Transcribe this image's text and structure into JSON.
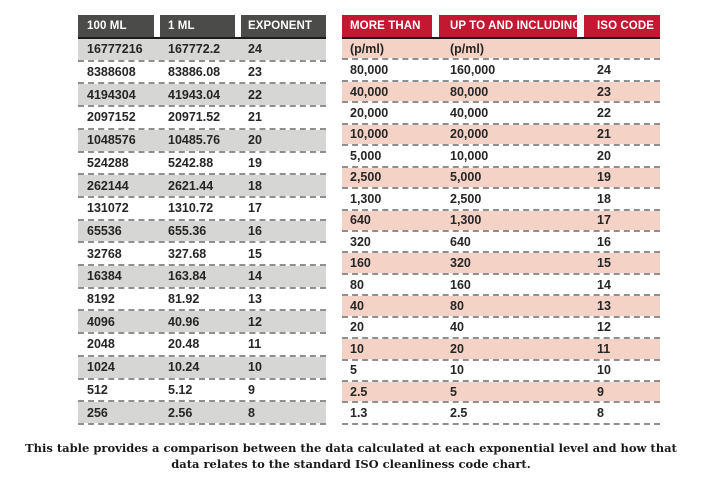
{
  "left_table": {
    "headers": [
      "100 ML",
      "1 ML",
      "EXPONENT"
    ],
    "rows": [
      [
        "16777216",
        "167772.2",
        "24"
      ],
      [
        "8388608",
        "83886.08",
        "23"
      ],
      [
        "4194304",
        "41943.04",
        "22"
      ],
      [
        "2097152",
        "20971.52",
        "21"
      ],
      [
        "1048576",
        "10485.76",
        "20"
      ],
      [
        "524288",
        "5242.88",
        "19"
      ],
      [
        "262144",
        "2621.44",
        "18"
      ],
      [
        "131072",
        "1310.72",
        "17"
      ],
      [
        "65536",
        "655.36",
        "16"
      ],
      [
        "32768",
        "327.68",
        "15"
      ],
      [
        "16384",
        "163.84",
        "14"
      ],
      [
        "8192",
        "81.92",
        "13"
      ],
      [
        "4096",
        "40.96",
        "12"
      ],
      [
        "2048",
        "20.48",
        "11"
      ],
      [
        "1024",
        "10.24",
        "10"
      ],
      [
        "512",
        "5.12",
        "9"
      ],
      [
        "256",
        "2.56",
        "8"
      ]
    ]
  },
  "right_table": {
    "headers": [
      "MORE THAN",
      "UP TO AND INCLUDING",
      "ISO CODE"
    ],
    "unit_row": [
      "(p/ml)",
      "(p/ml)",
      ""
    ],
    "rows": [
      [
        "80,000",
        "160,000",
        "24"
      ],
      [
        "40,000",
        "80,000",
        "23"
      ],
      [
        "20,000",
        "40,000",
        "22"
      ],
      [
        "10,000",
        "20,000",
        "21"
      ],
      [
        "5,000",
        "10,000",
        "20"
      ],
      [
        "2,500",
        "5,000",
        "19"
      ],
      [
        "1,300",
        "2,500",
        "18"
      ],
      [
        "640",
        "1,300",
        "17"
      ],
      [
        "320",
        "640",
        "16"
      ],
      [
        "160",
        "320",
        "15"
      ],
      [
        "80",
        "160",
        "14"
      ],
      [
        "40",
        "80",
        "13"
      ],
      [
        "20",
        "40",
        "12"
      ],
      [
        "10",
        "20",
        "11"
      ],
      [
        "5",
        "10",
        "10"
      ],
      [
        "2.5",
        "5",
        "9"
      ],
      [
        "1.3",
        "2.5",
        "8"
      ]
    ]
  },
  "caption": {
    "line1": "This table provides a comparison between the data calculated at each exponential level and how that",
    "line2": "data relates to the standard ISO cleanliness code chart."
  },
  "colors": {
    "dark_header": "#4b4b49",
    "red_header": "#c41731",
    "gray_row": "#d6d6d4",
    "pink_row": "#f4d3c6",
    "dash": "#8f8f8f"
  }
}
